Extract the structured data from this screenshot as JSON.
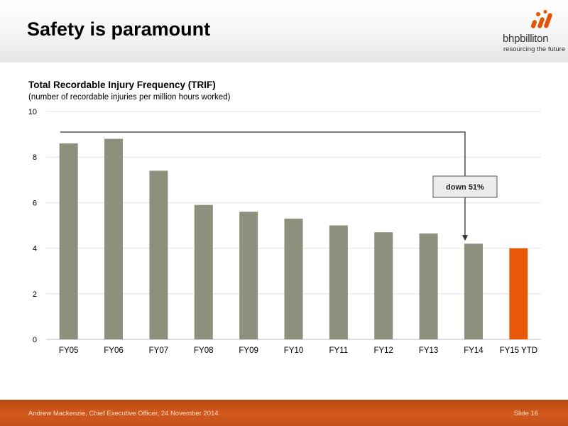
{
  "slide": {
    "title": "Safety is paramount",
    "logo_name": "bhpbilliton",
    "logo_tagline": "resourcing the future"
  },
  "footer": {
    "presenter": "Andrew Mackenzie, Chief Executive Officer, 24 November 2014",
    "slide_number": "Slide 16"
  },
  "colors": {
    "bar": "#8e8f7d",
    "highlight_bar": "#e8590c",
    "footer": "#c9521a",
    "logo_mark": "#e35205"
  },
  "chart_data": {
    "type": "bar",
    "title": "Total Recordable Injury Frequency (TRIF)",
    "subtitle": "(number of recordable injuries per million hours worked)",
    "categories": [
      "FY05",
      "FY06",
      "FY07",
      "FY08",
      "FY09",
      "FY10",
      "FY11",
      "FY12",
      "FY13",
      "FY14",
      "FY15 YTD"
    ],
    "values": [
      8.6,
      8.8,
      7.4,
      5.9,
      5.6,
      5.3,
      5.0,
      4.7,
      4.65,
      4.2,
      4.0
    ],
    "highlight_index": 10,
    "ylim": [
      0,
      10
    ],
    "yticks": [
      "0",
      "2",
      "4",
      "6",
      "8",
      "10"
    ],
    "grid": true,
    "annotation": {
      "text": "down 51%",
      "from": "FY05",
      "to": "FY14"
    }
  }
}
